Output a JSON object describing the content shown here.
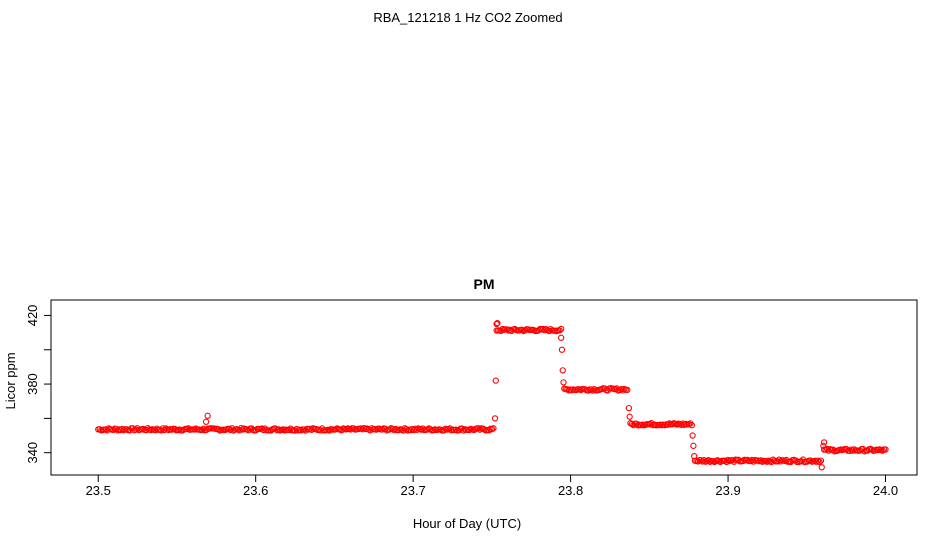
{
  "figure_title": "RBA_121218 1 Hz CO2 Zoomed",
  "chart_data": {
    "type": "scatter",
    "title": "PM",
    "xlabel": "Hour of Day (UTC)",
    "ylabel": "Licor ppm",
    "xlim": [
      23.47,
      24.02
    ],
    "ylim": [
      327,
      429
    ],
    "x_ticks": [
      23.5,
      23.6,
      23.7,
      23.8,
      23.9,
      24.0
    ],
    "x_tick_labels": [
      "23.5",
      "23.6",
      "23.7",
      "23.8",
      "23.9",
      "24.0"
    ],
    "y_ticks": [
      340,
      360,
      380,
      400,
      420
    ],
    "y_tick_labels": [
      "340",
      "",
      "380",
      "",
      "420"
    ],
    "grid": false,
    "legend": "none",
    "marker": "open-circle",
    "color": "#ff0000",
    "segments": [
      {
        "x_start": 23.5,
        "x_end": 23.751,
        "y": 353.6
      },
      {
        "x_start": 23.753,
        "x_end": 23.794,
        "y": 411.5
      },
      {
        "x_start": 23.796,
        "x_end": 23.836,
        "y": 376.9
      },
      {
        "x_start": 23.838,
        "x_end": 23.877,
        "y": 356.6
      },
      {
        "x_start": 23.879,
        "x_end": 23.959,
        "y": 335.3
      },
      {
        "x_start": 23.961,
        "x_end": 24.0,
        "y": 341.5
      }
    ],
    "transition_points": [
      {
        "x": 23.5685,
        "y": 358.0
      },
      {
        "x": 23.5695,
        "y": 361.5
      },
      {
        "x": 23.752,
        "y": 360.0
      },
      {
        "x": 23.7525,
        "y": 382.0
      },
      {
        "x": 23.753,
        "y": 415.0
      },
      {
        "x": 23.7535,
        "y": 415.5
      },
      {
        "x": 23.794,
        "y": 407.0
      },
      {
        "x": 23.7945,
        "y": 400.0
      },
      {
        "x": 23.795,
        "y": 388.0
      },
      {
        "x": 23.7955,
        "y": 381.0
      },
      {
        "x": 23.837,
        "y": 366.0
      },
      {
        "x": 23.8375,
        "y": 361.0
      },
      {
        "x": 23.8775,
        "y": 350.0
      },
      {
        "x": 23.878,
        "y": 344.0
      },
      {
        "x": 23.8785,
        "y": 338.0
      },
      {
        "x": 23.9595,
        "y": 331.5
      },
      {
        "x": 23.9605,
        "y": 344.0
      },
      {
        "x": 23.961,
        "y": 346.0
      }
    ]
  }
}
